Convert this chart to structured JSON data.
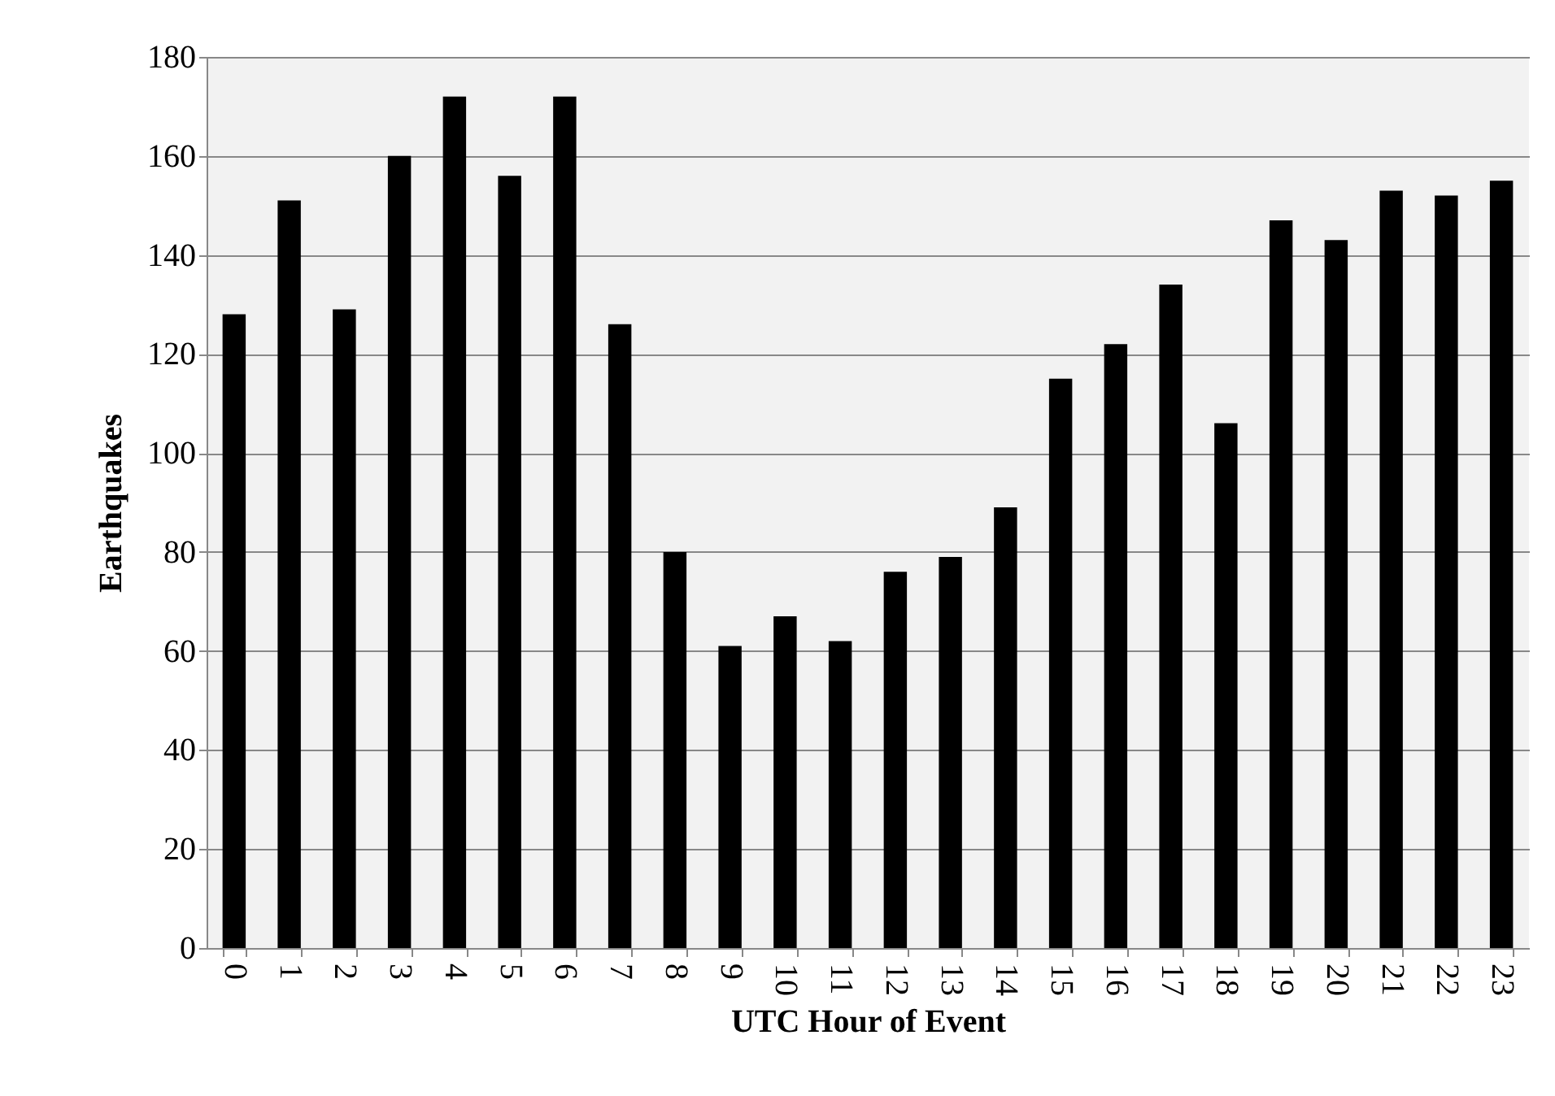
{
  "chart_data": {
    "type": "bar",
    "xlabel": "UTC Hour of Event",
    "ylabel": "Earthquakes",
    "categories": [
      "0",
      "1",
      "2",
      "3",
      "4",
      "5",
      "6",
      "7",
      "8",
      "9",
      "10",
      "11",
      "12",
      "13",
      "14",
      "15",
      "16",
      "17",
      "18",
      "19",
      "20",
      "21",
      "22",
      "23"
    ],
    "values": [
      128,
      151,
      129,
      160,
      172,
      156,
      172,
      126,
      80,
      61,
      67,
      62,
      76,
      79,
      89,
      115,
      122,
      134,
      106,
      147,
      143,
      153,
      152,
      155
    ],
    "color": "#000000",
    "ylim": [
      0,
      180
    ],
    "yticks": [
      0,
      20,
      40,
      60,
      80,
      100,
      120,
      140,
      160,
      180
    ],
    "grid": "y"
  }
}
